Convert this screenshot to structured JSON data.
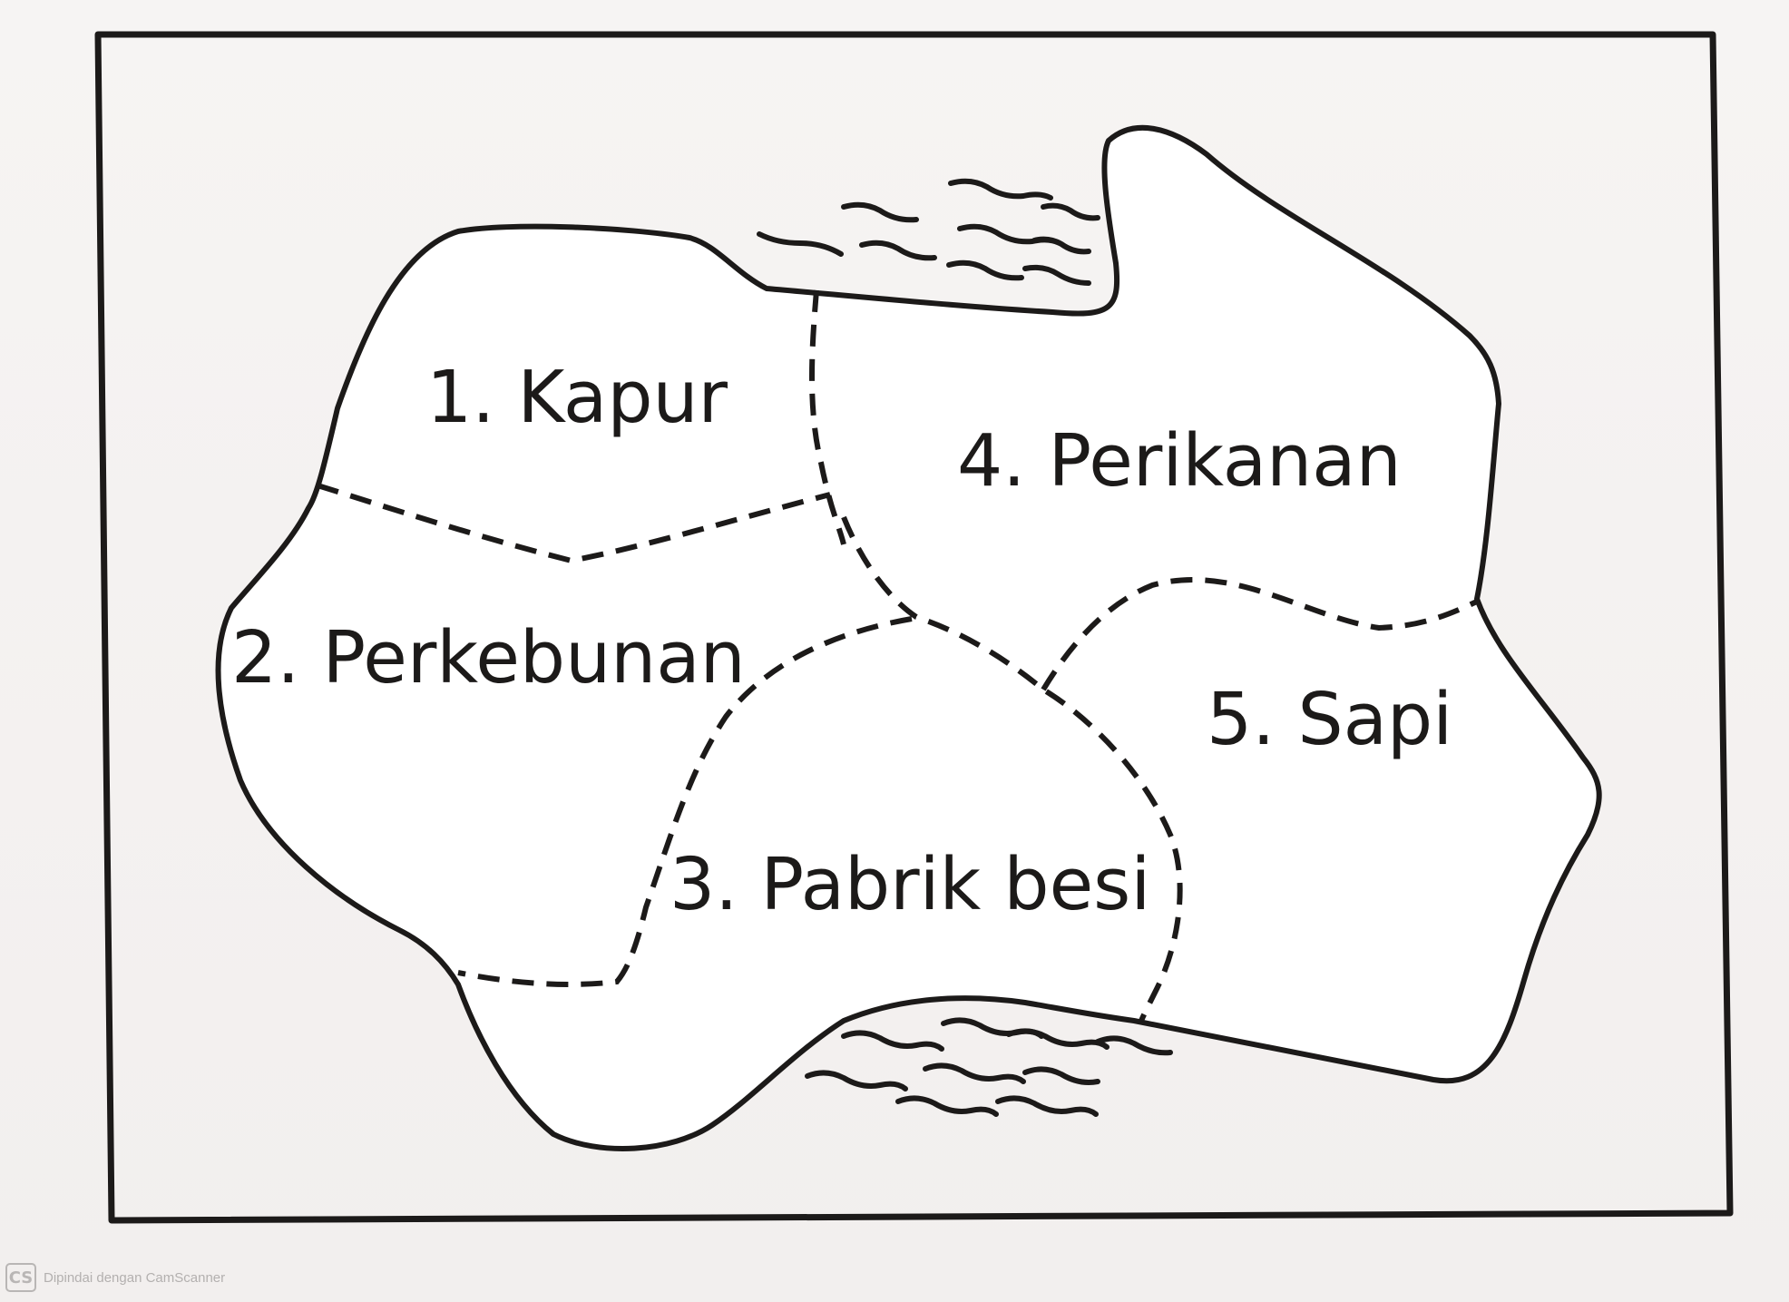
{
  "map": {
    "regions": [
      {
        "id": "kapur",
        "label": "1. Kapur"
      },
      {
        "id": "perikanan",
        "label": "4. Perikanan"
      },
      {
        "id": "perkebunan",
        "label": "2. Perkebunan"
      },
      {
        "id": "sapi",
        "label": "5. Sapi"
      },
      {
        "id": "pabrik-besi",
        "label": "3. Pabrik besi"
      }
    ],
    "colors": {
      "ink": "#1c1a19",
      "paper": "#f4f2f1"
    }
  },
  "watermark": {
    "logo": "CS",
    "text": "Dipindai dengan CamScanner"
  }
}
